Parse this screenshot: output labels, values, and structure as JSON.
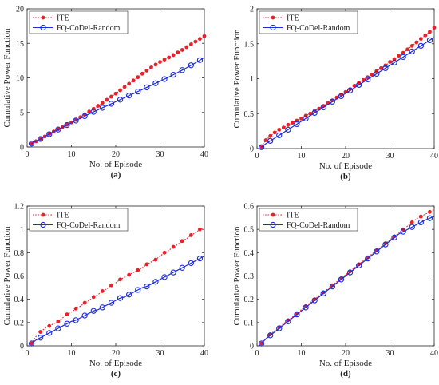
{
  "chart_data": [
    {
      "type": "line",
      "panel_tag": "(a)",
      "xlabel": "No. of Episode",
      "ylabel": "Cumulative Power Function",
      "xlim": [
        0,
        40
      ],
      "ylim": [
        0,
        20
      ],
      "xticks": [
        0,
        10,
        20,
        30,
        40
      ],
      "yticks": [
        0,
        5,
        10,
        15,
        20
      ],
      "legend_position": "top-left",
      "grid": false,
      "series": [
        {
          "name": "ITE",
          "color": "#e8202a",
          "line_style": "dotted",
          "marker": "filled-circle",
          "marker_every": 1,
          "x": [
            1,
            2,
            3,
            4,
            5,
            6,
            7,
            8,
            9,
            10,
            11,
            12,
            13,
            14,
            15,
            16,
            17,
            18,
            19,
            20,
            21,
            22,
            23,
            24,
            25,
            26,
            27,
            28,
            29,
            30,
            31,
            32,
            33,
            34,
            35,
            36,
            37,
            38,
            39,
            40
          ],
          "values": [
            0.48,
            0.82,
            1.17,
            1.52,
            1.88,
            2.24,
            2.56,
            2.88,
            3.22,
            3.55,
            3.92,
            4.3,
            4.72,
            5.12,
            5.52,
            5.95,
            6.38,
            6.82,
            7.28,
            7.72,
            8.2,
            8.68,
            9.15,
            9.62,
            10.1,
            10.6,
            11.05,
            11.5,
            11.92,
            12.3,
            12.65,
            12.95,
            13.3,
            13.68,
            14.05,
            14.45,
            14.85,
            15.25,
            15.65,
            16.05
          ]
        },
        {
          "name": "FQ-CoDel-Random",
          "color": "#1f2fd6",
          "line_style": "solid",
          "marker": "open-circle",
          "marker_every": 2,
          "x": [
            1,
            2,
            3,
            4,
            5,
            6,
            7,
            8,
            9,
            10,
            11,
            12,
            13,
            14,
            15,
            16,
            17,
            18,
            19,
            20,
            21,
            22,
            23,
            24,
            25,
            26,
            27,
            28,
            29,
            30,
            31,
            32,
            33,
            34,
            35,
            36,
            37,
            38,
            39,
            40
          ],
          "values": [
            0.48,
            0.82,
            1.16,
            1.5,
            1.85,
            2.2,
            2.52,
            2.85,
            3.17,
            3.5,
            3.82,
            4.15,
            4.46,
            4.78,
            5.08,
            5.38,
            5.67,
            5.96,
            6.25,
            6.55,
            6.84,
            7.14,
            7.43,
            7.72,
            8.02,
            8.32,
            8.62,
            8.92,
            9.22,
            9.52,
            9.82,
            10.12,
            10.45,
            10.78,
            11.12,
            11.46,
            11.82,
            12.18,
            12.56,
            12.95
          ]
        }
      ]
    },
    {
      "type": "line",
      "panel_tag": "(b)",
      "xlabel": "No. of Episode",
      "ylabel": "Cumulative Power Function",
      "xlim": [
        0,
        40
      ],
      "ylim": [
        0,
        2
      ],
      "xticks": [
        0,
        10,
        20,
        30,
        40
      ],
      "yticks": [
        0,
        0.5,
        1,
        1.5,
        2
      ],
      "legend_position": "top-left",
      "grid": false,
      "series": [
        {
          "name": "ITE",
          "color": "#e8202a",
          "line_style": "dotted",
          "marker": "filled-circle",
          "marker_every": 1,
          "x": [
            1,
            2,
            3,
            4,
            5,
            6,
            7,
            8,
            9,
            10,
            11,
            12,
            13,
            14,
            15,
            16,
            17,
            18,
            19,
            20,
            21,
            22,
            23,
            24,
            25,
            26,
            27,
            28,
            29,
            30,
            31,
            32,
            33,
            34,
            35,
            36,
            37,
            38,
            39,
            40
          ],
          "values": [
            0.03,
            0.12,
            0.18,
            0.23,
            0.27,
            0.3,
            0.34,
            0.37,
            0.4,
            0.43,
            0.47,
            0.5,
            0.54,
            0.57,
            0.61,
            0.65,
            0.69,
            0.73,
            0.77,
            0.81,
            0.85,
            0.9,
            0.94,
            0.98,
            1.02,
            1.06,
            1.11,
            1.15,
            1.19,
            1.24,
            1.28,
            1.33,
            1.37,
            1.42,
            1.47,
            1.52,
            1.57,
            1.62,
            1.67,
            1.73
          ]
        },
        {
          "name": "FQ-CoDel-Random",
          "color": "#1f2fd6",
          "line_style": "solid",
          "marker": "open-circle",
          "marker_every": 2,
          "x": [
            1,
            2,
            3,
            4,
            5,
            6,
            7,
            8,
            9,
            10,
            11,
            12,
            13,
            14,
            15,
            16,
            17,
            18,
            19,
            20,
            21,
            22,
            23,
            24,
            25,
            26,
            27,
            28,
            29,
            30,
            31,
            32,
            33,
            34,
            35,
            36,
            37,
            38,
            39,
            40
          ],
          "values": [
            0.02,
            0.07,
            0.11,
            0.15,
            0.19,
            0.23,
            0.27,
            0.31,
            0.35,
            0.39,
            0.43,
            0.47,
            0.51,
            0.55,
            0.59,
            0.63,
            0.67,
            0.71,
            0.75,
            0.79,
            0.83,
            0.87,
            0.91,
            0.95,
            0.99,
            1.03,
            1.07,
            1.11,
            1.15,
            1.19,
            1.23,
            1.27,
            1.31,
            1.35,
            1.39,
            1.43,
            1.47,
            1.51,
            1.55,
            1.59
          ]
        }
      ]
    },
    {
      "type": "line",
      "panel_tag": "(c)",
      "xlabel": "No. of Episode",
      "ylabel": "Cumulative Power Function",
      "xlim": [
        0,
        40
      ],
      "ylim": [
        0,
        1.2
      ],
      "xticks": [
        0,
        10,
        20,
        30,
        40
      ],
      "yticks": [
        0,
        0.2,
        0.4,
        0.6,
        0.8,
        1,
        1.2
      ],
      "legend_position": "top-left",
      "grid": false,
      "series": [
        {
          "name": "ITE",
          "color": "#e8202a",
          "line_style": "dotted",
          "marker": "filled-circle",
          "marker_every": 2,
          "x": [
            1,
            2,
            3,
            4,
            5,
            6,
            7,
            8,
            9,
            10,
            11,
            12,
            13,
            14,
            15,
            16,
            17,
            18,
            19,
            20,
            21,
            22,
            23,
            24,
            25,
            26,
            27,
            28,
            29,
            30,
            31,
            32,
            33,
            34,
            35,
            36,
            37,
            38,
            39,
            40
          ],
          "values": [
            0.02,
            0.08,
            0.12,
            0.15,
            0.17,
            0.19,
            0.21,
            0.24,
            0.27,
            0.29,
            0.32,
            0.34,
            0.37,
            0.39,
            0.42,
            0.44,
            0.47,
            0.49,
            0.52,
            0.54,
            0.57,
            0.59,
            0.61,
            0.63,
            0.65,
            0.67,
            0.7,
            0.72,
            0.74,
            0.77,
            0.8,
            0.82,
            0.85,
            0.87,
            0.9,
            0.92,
            0.95,
            0.97,
            1.0,
            1.02
          ]
        },
        {
          "name": "FQ-CoDel-Random",
          "color": "#1f2fd6",
          "line_style": "solid",
          "marker": "open-circle",
          "marker_every": 2,
          "x": [
            1,
            2,
            3,
            4,
            5,
            6,
            7,
            8,
            9,
            10,
            11,
            12,
            13,
            14,
            15,
            16,
            17,
            18,
            19,
            20,
            21,
            22,
            23,
            24,
            25,
            26,
            27,
            28,
            29,
            30,
            31,
            32,
            33,
            34,
            35,
            36,
            37,
            38,
            39,
            40
          ],
          "values": [
            0.02,
            0.05,
            0.07,
            0.09,
            0.11,
            0.13,
            0.15,
            0.17,
            0.19,
            0.21,
            0.22,
            0.24,
            0.26,
            0.28,
            0.3,
            0.31,
            0.33,
            0.35,
            0.37,
            0.39,
            0.41,
            0.42,
            0.44,
            0.46,
            0.48,
            0.5,
            0.51,
            0.53,
            0.55,
            0.57,
            0.59,
            0.61,
            0.63,
            0.65,
            0.67,
            0.69,
            0.71,
            0.73,
            0.75,
            0.77
          ]
        }
      ]
    },
    {
      "type": "line",
      "panel_tag": "(d)",
      "xlabel": "No. of Episode",
      "ylabel": "Cumulative Power Function",
      "xlim": [
        0,
        40
      ],
      "ylim": [
        0,
        0.6
      ],
      "xticks": [
        0,
        10,
        20,
        30,
        40
      ],
      "yticks": [
        0,
        0.1,
        0.2,
        0.3,
        0.4,
        0.5,
        0.6
      ],
      "legend_position": "top-left",
      "grid": false,
      "series": [
        {
          "name": "ITE",
          "color": "#e8202a",
          "line_style": "dotted",
          "marker": "filled-circle",
          "marker_every": 2,
          "x": [
            1,
            2,
            3,
            4,
            5,
            6,
            7,
            8,
            9,
            10,
            11,
            12,
            13,
            14,
            15,
            16,
            17,
            18,
            19,
            20,
            21,
            22,
            23,
            24,
            25,
            26,
            27,
            28,
            29,
            30,
            31,
            32,
            33,
            34,
            35,
            36,
            37,
            38,
            39,
            40
          ],
          "values": [
            0.01,
            0.03,
            0.05,
            0.065,
            0.08,
            0.095,
            0.11,
            0.125,
            0.14,
            0.155,
            0.17,
            0.185,
            0.2,
            0.215,
            0.23,
            0.245,
            0.26,
            0.275,
            0.29,
            0.305,
            0.32,
            0.335,
            0.35,
            0.365,
            0.38,
            0.395,
            0.41,
            0.425,
            0.44,
            0.455,
            0.47,
            0.485,
            0.5,
            0.515,
            0.53,
            0.545,
            0.555,
            0.565,
            0.575,
            0.585
          ]
        },
        {
          "name": "FQ-CoDel-Random",
          "color": "#1f2fd6",
          "line_style": "solid",
          "marker": "open-circle",
          "marker_every": 2,
          "x": [
            1,
            2,
            3,
            4,
            5,
            6,
            7,
            8,
            9,
            10,
            11,
            12,
            13,
            14,
            15,
            16,
            17,
            18,
            19,
            20,
            21,
            22,
            23,
            24,
            25,
            26,
            27,
            28,
            29,
            30,
            31,
            32,
            33,
            34,
            35,
            36,
            37,
            38,
            39,
            40
          ],
          "values": [
            0.01,
            0.03,
            0.045,
            0.06,
            0.075,
            0.09,
            0.105,
            0.12,
            0.135,
            0.15,
            0.165,
            0.18,
            0.195,
            0.21,
            0.225,
            0.24,
            0.255,
            0.27,
            0.285,
            0.3,
            0.315,
            0.33,
            0.345,
            0.36,
            0.375,
            0.39,
            0.405,
            0.42,
            0.435,
            0.45,
            0.465,
            0.48,
            0.49,
            0.5,
            0.51,
            0.52,
            0.53,
            0.54,
            0.548,
            0.555
          ]
        }
      ]
    }
  ]
}
